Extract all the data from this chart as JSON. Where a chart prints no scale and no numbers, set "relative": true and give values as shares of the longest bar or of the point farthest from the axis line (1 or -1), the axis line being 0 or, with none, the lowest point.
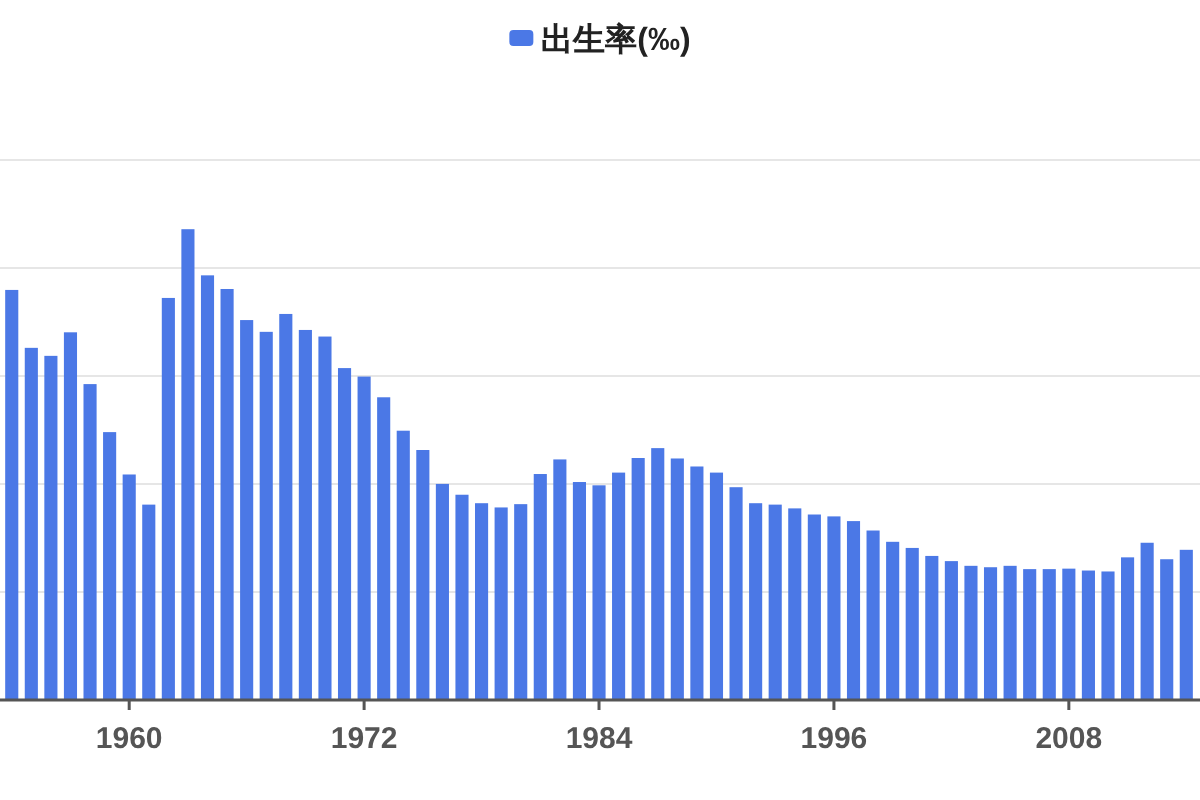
{
  "chart_data": {
    "type": "bar",
    "relative": true,
    "x": [
      1954,
      1955,
      1956,
      1957,
      1958,
      1959,
      1960,
      1961,
      1962,
      1963,
      1964,
      1965,
      1966,
      1967,
      1968,
      1969,
      1970,
      1971,
      1972,
      1973,
      1974,
      1975,
      1976,
      1977,
      1978,
      1979,
      1980,
      1981,
      1982,
      1983,
      1984,
      1985,
      1986,
      1987,
      1988,
      1989,
      1990,
      1991,
      1992,
      1993,
      1994,
      1995,
      1996,
      1997,
      1998,
      1999,
      2000,
      2001,
      2002,
      2003,
      2004,
      2005,
      2006,
      2007,
      2008,
      2009,
      2010,
      2011,
      2012,
      2013,
      2014
    ],
    "series": [
      {
        "name": "出生率(‰)",
        "color": "#4b78e6",
        "values": [
          0.871,
          0.748,
          0.731,
          0.781,
          0.671,
          0.569,
          0.479,
          0.415,
          0.854,
          1,
          0.902,
          0.873,
          0.807,
          0.782,
          0.82,
          0.786,
          0.772,
          0.705,
          0.687,
          0.643,
          0.572,
          0.531,
          0.459,
          0.436,
          0.418,
          0.409,
          0.416,
          0.48,
          0.511,
          0.463,
          0.456,
          0.483,
          0.514,
          0.535,
          0.513,
          0.496,
          0.483,
          0.452,
          0.418,
          0.415,
          0.407,
          0.394,
          0.39,
          0.38,
          0.36,
          0.336,
          0.323,
          0.306,
          0.295,
          0.285,
          0.282,
          0.285,
          0.278,
          0.278,
          0.279,
          0.275,
          0.273,
          0.303,
          0.334,
          0.299,
          0.319
        ]
      }
    ],
    "xlim": [
      1953.4,
      2014.7
    ],
    "xticks": [
      1960,
      1972,
      1984,
      1996,
      2008
    ],
    "grid": "y",
    "legend": "top"
  }
}
